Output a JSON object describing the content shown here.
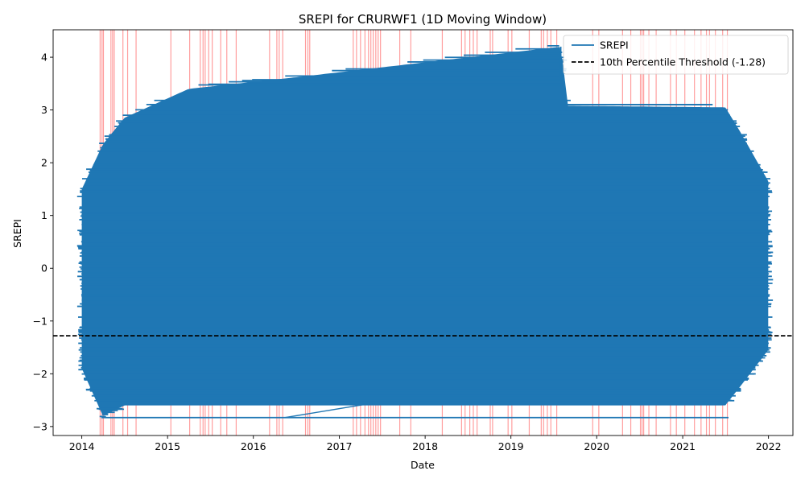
{
  "chart_data": {
    "type": "line",
    "title": "SREPI for CRURWF1 (1D Moving Window)",
    "xlabel": "Date",
    "ylabel": "SREPI",
    "xlim": [
      "2013-09-01",
      "2022-04-15"
    ],
    "ylim": [
      -3.17,
      4.52
    ],
    "x_ticks": [
      "2014",
      "2015",
      "2016",
      "2017",
      "2018",
      "2019",
      "2020",
      "2021",
      "2022"
    ],
    "y_ticks": [
      "-3",
      "-2",
      "-1",
      "0",
      "1",
      "2",
      "3",
      "4"
    ],
    "grid": false,
    "legend_position": "top-right",
    "threshold": {
      "label": "10th Percentile Threshold (-1.28)",
      "value": -1.28,
      "color": "#000000",
      "style": "dashed"
    },
    "series": [
      {
        "name": "SREPI",
        "color": "#1f77b4",
        "x_range": [
          "2014-01-01",
          "2021-12-31"
        ],
        "envelope": [
          {
            "date": "2014-01-01",
            "min": -1.9,
            "max": 1.5
          },
          {
            "date": "2014-04-01",
            "min": -2.8,
            "max": 2.35
          },
          {
            "date": "2014-07-01",
            "min": -2.6,
            "max": 2.85
          },
          {
            "date": "2015-04-01",
            "min": -2.6,
            "max": 3.4
          },
          {
            "date": "2016-07-01",
            "min": -2.6,
            "max": 3.62
          },
          {
            "date": "2019-08-01",
            "min": -2.6,
            "max": 4.2
          },
          {
            "date": "2019-09-01",
            "min": -2.6,
            "max": 3.08
          },
          {
            "date": "2021-07-01",
            "min": -2.6,
            "max": 3.05
          },
          {
            "date": "2021-09-01",
            "min": -2.25,
            "max": 2.6
          },
          {
            "date": "2021-12-31",
            "min": -1.55,
            "max": 1.65
          }
        ]
      }
    ],
    "highlight_events": {
      "color": "#ff0000",
      "dates": [
        "2014-03-20",
        "2014-03-28",
        "2014-04-03",
        "2014-05-05",
        "2014-05-12",
        "2014-05-19",
        "2014-06-25",
        "2014-07-15",
        "2014-08-20",
        "2015-01-15",
        "2015-04-05",
        "2015-05-20",
        "2015-06-01",
        "2015-06-10",
        "2015-06-25",
        "2015-07-10",
        "2015-08-15",
        "2015-09-10",
        "2015-10-20",
        "2016-03-10",
        "2016-04-10",
        "2016-04-20",
        "2016-05-05",
        "2016-08-10",
        "2016-08-20",
        "2016-08-28",
        "2017-03-01",
        "2017-03-15",
        "2017-04-01",
        "2017-04-20",
        "2017-05-05",
        "2017-05-15",
        "2017-05-25",
        "2017-06-05",
        "2017-06-15",
        "2017-06-25",
        "2017-09-15",
        "2017-11-01",
        "2018-03-15",
        "2018-06-05",
        "2018-06-20",
        "2018-07-10",
        "2018-07-25",
        "2018-08-10",
        "2018-10-05",
        "2018-10-15",
        "2018-12-20",
        "2019-01-05",
        "2019-03-20",
        "2019-05-10",
        "2019-05-20",
        "2019-06-05",
        "2019-06-20",
        "2019-07-15",
        "2019-12-15",
        "2020-01-10",
        "2020-04-20",
        "2020-05-25",
        "2020-07-05",
        "2020-07-12",
        "2020-07-19",
        "2020-08-10",
        "2020-09-10",
        "2020-11-10",
        "2020-12-05",
        "2021-01-10",
        "2021-02-20",
        "2021-03-20",
        "2021-04-12",
        "2021-04-25",
        "2021-05-20",
        "2021-06-20",
        "2021-07-10"
      ]
    }
  }
}
